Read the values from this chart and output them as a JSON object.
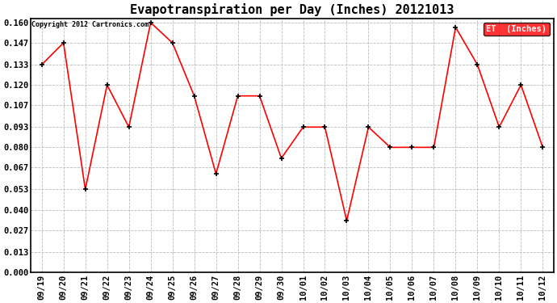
{
  "title": "Evapotranspiration per Day (Inches) 20121013",
  "copyright_text": "Copyright 2012 Cartronics.com",
  "legend_label": "ET  (Inches)",
  "x_labels": [
    "09/19",
    "09/20",
    "09/21",
    "09/22",
    "09/23",
    "09/24",
    "09/25",
    "09/26",
    "09/27",
    "09/28",
    "09/29",
    "09/30",
    "10/01",
    "10/02",
    "10/03",
    "10/04",
    "10/05",
    "10/06",
    "10/07",
    "10/08",
    "10/09",
    "10/10",
    "10/11",
    "10/12"
  ],
  "y_values": [
    0.133,
    0.147,
    0.053,
    0.12,
    0.093,
    0.16,
    0.147,
    0.113,
    0.063,
    0.113,
    0.113,
    0.073,
    0.093,
    0.093,
    0.033,
    0.093,
    0.08,
    0.08,
    0.08,
    0.157,
    0.133,
    0.093,
    0.12,
    0.08
  ],
  "y_ticks": [
    0.0,
    0.013,
    0.027,
    0.04,
    0.053,
    0.067,
    0.08,
    0.093,
    0.107,
    0.12,
    0.133,
    0.147,
    0.16
  ],
  "y_min": 0.0,
  "y_max": 0.1627,
  "line_color": "#ff0000",
  "marker_color": "#000000",
  "background_color": "#ffffff",
  "grid_color": "#bbbbbb",
  "title_fontsize": 11,
  "tick_fontsize": 7.5,
  "copyright_fontsize": 6,
  "legend_bg_color": "#ff0000",
  "legend_text_color": "#ffffff"
}
